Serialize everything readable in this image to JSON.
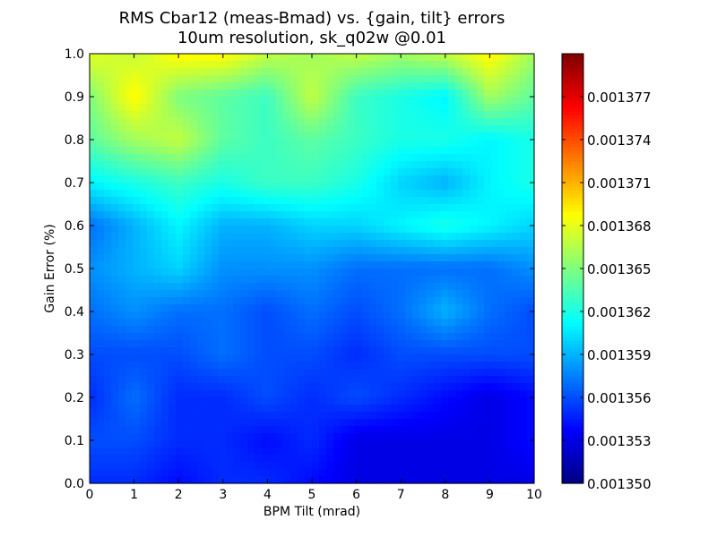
{
  "chart_data": {
    "type": "heatmap",
    "title_line1": "RMS Cbar12 (meas-Bmad) vs. {gain, tilt} errors",
    "title_line2": "10um resolution, sk_q02w @0.01",
    "xlabel": "BPM Tilt (mrad)",
    "ylabel": "Gain Error (%)",
    "xlim": [
      0,
      10
    ],
    "ylim": [
      0,
      1.0
    ],
    "x_ticks": [
      "0",
      "1",
      "2",
      "3",
      "4",
      "5",
      "6",
      "7",
      "8",
      "9",
      "10"
    ],
    "y_ticks": [
      "0.0",
      "0.1",
      "0.2",
      "0.3",
      "0.4",
      "0.5",
      "0.6",
      "0.7",
      "0.8",
      "0.9",
      "1.0"
    ],
    "colorbar": {
      "min": 0.00135,
      "max": 0.00138,
      "ticks": [
        "0.001350",
        "0.001353",
        "0.001356",
        "0.001359",
        "0.001362",
        "0.001365",
        "0.001368",
        "0.001371",
        "0.001374",
        "0.001377"
      ],
      "tick_values": [
        0.00135,
        0.001353,
        0.001356,
        0.001359,
        0.001362,
        0.001365,
        0.001368,
        0.001371,
        0.001374,
        0.001377
      ]
    },
    "x": [
      0,
      1,
      2,
      3,
      4,
      5,
      6,
      7,
      8,
      9,
      10
    ],
    "y": [
      0.0,
      0.1,
      0.2,
      0.3,
      0.4,
      0.5,
      0.6,
      0.7,
      0.8,
      0.9,
      1.0
    ],
    "z": [
      [
        0.001355,
        0.001355,
        0.001354,
        0.001355,
        0.001355,
        0.001354,
        0.001353,
        0.001353,
        0.001353,
        0.001353,
        0.001353
      ],
      [
        0.001356,
        0.001356,
        0.001355,
        0.001355,
        0.001354,
        0.001355,
        0.001353,
        0.001353,
        0.001353,
        0.001353,
        0.001354
      ],
      [
        0.001355,
        0.001357,
        0.001355,
        0.001355,
        0.001356,
        0.001355,
        0.001356,
        0.001355,
        0.001354,
        0.001353,
        0.001354
      ],
      [
        0.001356,
        0.001356,
        0.001356,
        0.001357,
        0.001356,
        0.001356,
        0.001355,
        0.001356,
        0.001356,
        0.001356,
        0.001356
      ],
      [
        0.001357,
        0.001358,
        0.001357,
        0.001357,
        0.001356,
        0.001357,
        0.001356,
        0.001357,
        0.001359,
        0.001357,
        0.001356
      ],
      [
        0.001358,
        0.001359,
        0.00136,
        0.001358,
        0.001358,
        0.001358,
        0.001357,
        0.001357,
        0.001357,
        0.001357,
        0.001358
      ],
      [
        0.001357,
        0.001359,
        0.001361,
        0.001359,
        0.001359,
        0.00136,
        0.00136,
        0.001361,
        0.001362,
        0.001361,
        0.00136
      ],
      [
        0.001361,
        0.001362,
        0.001363,
        0.001362,
        0.001363,
        0.001363,
        0.001362,
        0.00136,
        0.001359,
        0.001361,
        0.001362
      ],
      [
        0.001364,
        0.001366,
        0.001367,
        0.001364,
        0.001363,
        0.001364,
        0.001363,
        0.001362,
        0.001362,
        0.001361,
        0.001362
      ],
      [
        0.001365,
        0.001369,
        0.001365,
        0.001364,
        0.001363,
        0.001367,
        0.001363,
        0.001362,
        0.001361,
        0.001366,
        0.001364
      ],
      [
        0.001368,
        0.001367,
        0.001369,
        0.001369,
        0.001367,
        0.001366,
        0.001367,
        0.001366,
        0.001367,
        0.001369,
        0.001366
      ]
    ]
  }
}
